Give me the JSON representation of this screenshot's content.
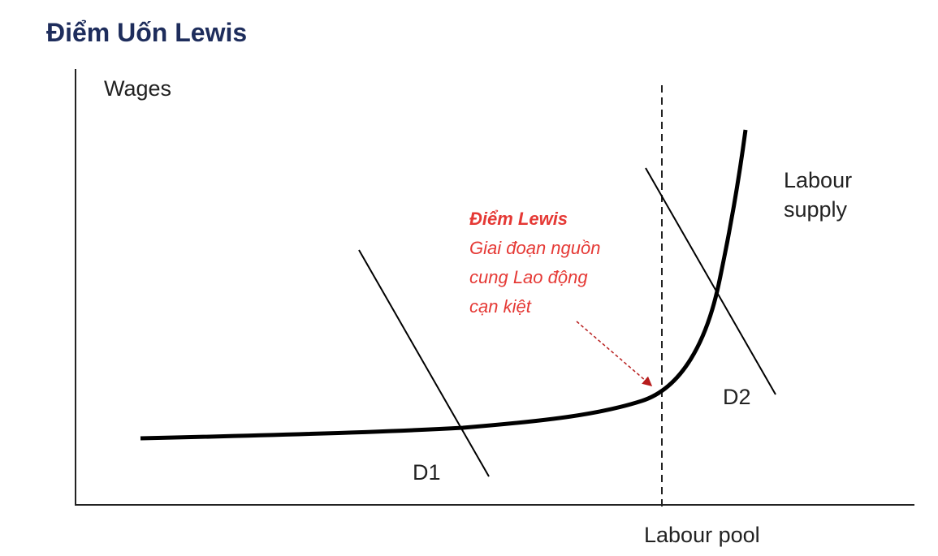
{
  "title": "Điểm Uốn Lewis",
  "axes": {
    "y_label": "Wages",
    "x_label": "Labour pool"
  },
  "curves": {
    "supply_label": [
      "Labour",
      "supply"
    ],
    "demand_1": "D1",
    "demand_2": "D2"
  },
  "annotation": {
    "title": "Điểm Lewis",
    "lines": [
      "Giai đoạn nguồn",
      "cung Lao động",
      "cạn kiệt"
    ]
  }
}
